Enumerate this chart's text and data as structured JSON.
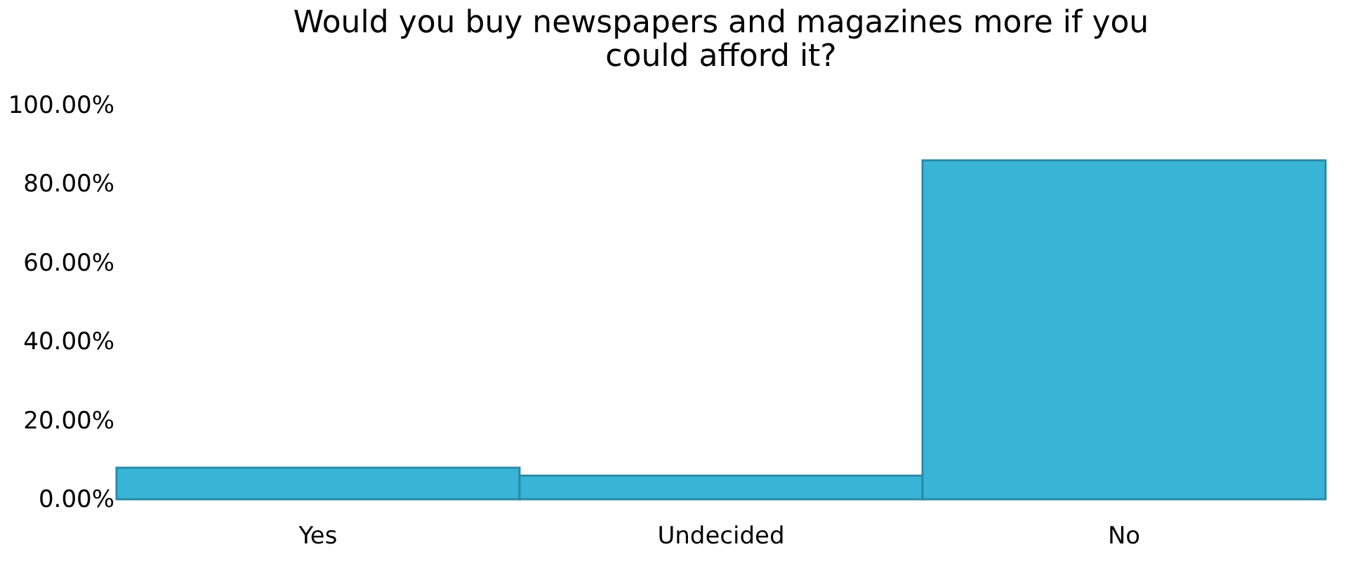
{
  "chart_data": {
    "type": "bar",
    "title": [
      "Would you buy newspapers and magazines more if you",
      "could afford it?"
    ],
    "categories": [
      "Yes",
      "Undecided",
      "No"
    ],
    "values": [
      8,
      6,
      86
    ],
    "color": "#38b4d6",
    "ylim": [
      0,
      100
    ],
    "yticks": [
      {
        "value": 0,
        "label": "0.00%"
      },
      {
        "value": 20,
        "label": "20.00%"
      },
      {
        "value": 40,
        "label": "40.00%"
      },
      {
        "value": 60,
        "label": "60.00%"
      },
      {
        "value": 80,
        "label": "80.00%"
      },
      {
        "value": 100,
        "label": "100.00%"
      }
    ],
    "grid": false
  }
}
